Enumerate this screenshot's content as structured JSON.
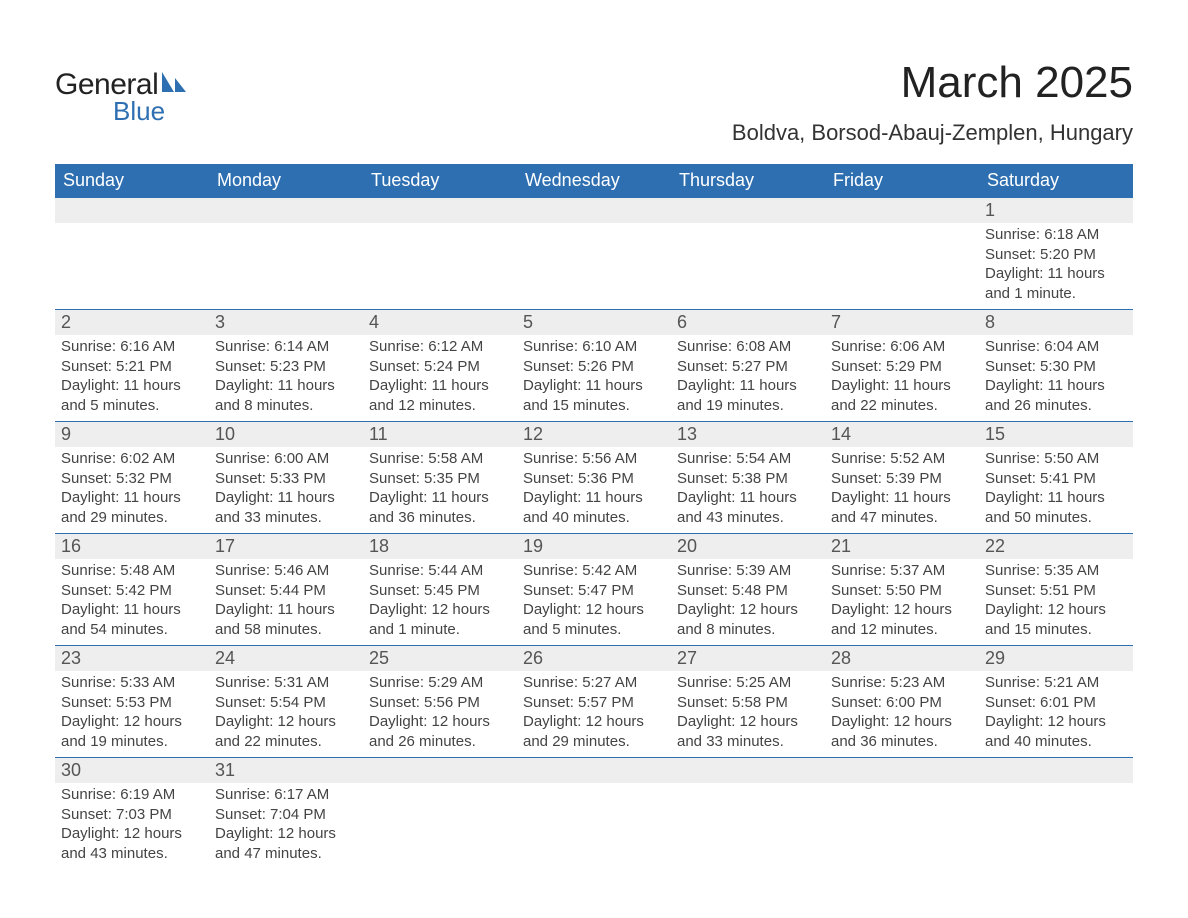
{
  "logo": {
    "word1": "General",
    "word2": "Blue",
    "text_color": "#222222",
    "accent_color": "#2d6fb1"
  },
  "title": "March 2025",
  "location": "Boldva, Borsod-Abauj-Zemplen, Hungary",
  "colors": {
    "header_bg": "#2d6fb1",
    "header_text": "#ffffff",
    "daynum_bg": "#eeeeee",
    "row_border": "#2d6fb1",
    "body_text": "#444444",
    "daynum_text": "#555555",
    "page_bg": "#ffffff"
  },
  "typography": {
    "title_fontsize": 44,
    "location_fontsize": 22,
    "header_fontsize": 18,
    "daynum_fontsize": 18,
    "detail_fontsize": 15
  },
  "day_headers": [
    "Sunday",
    "Monday",
    "Tuesday",
    "Wednesday",
    "Thursday",
    "Friday",
    "Saturday"
  ],
  "weeks": [
    [
      {
        "n": "",
        "sunrise": "",
        "sunset": "",
        "daylight": ""
      },
      {
        "n": "",
        "sunrise": "",
        "sunset": "",
        "daylight": ""
      },
      {
        "n": "",
        "sunrise": "",
        "sunset": "",
        "daylight": ""
      },
      {
        "n": "",
        "sunrise": "",
        "sunset": "",
        "daylight": ""
      },
      {
        "n": "",
        "sunrise": "",
        "sunset": "",
        "daylight": ""
      },
      {
        "n": "",
        "sunrise": "",
        "sunset": "",
        "daylight": ""
      },
      {
        "n": "1",
        "sunrise": "Sunrise: 6:18 AM",
        "sunset": "Sunset: 5:20 PM",
        "daylight": "Daylight: 11 hours and 1 minute."
      }
    ],
    [
      {
        "n": "2",
        "sunrise": "Sunrise: 6:16 AM",
        "sunset": "Sunset: 5:21 PM",
        "daylight": "Daylight: 11 hours and 5 minutes."
      },
      {
        "n": "3",
        "sunrise": "Sunrise: 6:14 AM",
        "sunset": "Sunset: 5:23 PM",
        "daylight": "Daylight: 11 hours and 8 minutes."
      },
      {
        "n": "4",
        "sunrise": "Sunrise: 6:12 AM",
        "sunset": "Sunset: 5:24 PM",
        "daylight": "Daylight: 11 hours and 12 minutes."
      },
      {
        "n": "5",
        "sunrise": "Sunrise: 6:10 AM",
        "sunset": "Sunset: 5:26 PM",
        "daylight": "Daylight: 11 hours and 15 minutes."
      },
      {
        "n": "6",
        "sunrise": "Sunrise: 6:08 AM",
        "sunset": "Sunset: 5:27 PM",
        "daylight": "Daylight: 11 hours and 19 minutes."
      },
      {
        "n": "7",
        "sunrise": "Sunrise: 6:06 AM",
        "sunset": "Sunset: 5:29 PM",
        "daylight": "Daylight: 11 hours and 22 minutes."
      },
      {
        "n": "8",
        "sunrise": "Sunrise: 6:04 AM",
        "sunset": "Sunset: 5:30 PM",
        "daylight": "Daylight: 11 hours and 26 minutes."
      }
    ],
    [
      {
        "n": "9",
        "sunrise": "Sunrise: 6:02 AM",
        "sunset": "Sunset: 5:32 PM",
        "daylight": "Daylight: 11 hours and 29 minutes."
      },
      {
        "n": "10",
        "sunrise": "Sunrise: 6:00 AM",
        "sunset": "Sunset: 5:33 PM",
        "daylight": "Daylight: 11 hours and 33 minutes."
      },
      {
        "n": "11",
        "sunrise": "Sunrise: 5:58 AM",
        "sunset": "Sunset: 5:35 PM",
        "daylight": "Daylight: 11 hours and 36 minutes."
      },
      {
        "n": "12",
        "sunrise": "Sunrise: 5:56 AM",
        "sunset": "Sunset: 5:36 PM",
        "daylight": "Daylight: 11 hours and 40 minutes."
      },
      {
        "n": "13",
        "sunrise": "Sunrise: 5:54 AM",
        "sunset": "Sunset: 5:38 PM",
        "daylight": "Daylight: 11 hours and 43 minutes."
      },
      {
        "n": "14",
        "sunrise": "Sunrise: 5:52 AM",
        "sunset": "Sunset: 5:39 PM",
        "daylight": "Daylight: 11 hours and 47 minutes."
      },
      {
        "n": "15",
        "sunrise": "Sunrise: 5:50 AM",
        "sunset": "Sunset: 5:41 PM",
        "daylight": "Daylight: 11 hours and 50 minutes."
      }
    ],
    [
      {
        "n": "16",
        "sunrise": "Sunrise: 5:48 AM",
        "sunset": "Sunset: 5:42 PM",
        "daylight": "Daylight: 11 hours and 54 minutes."
      },
      {
        "n": "17",
        "sunrise": "Sunrise: 5:46 AM",
        "sunset": "Sunset: 5:44 PM",
        "daylight": "Daylight: 11 hours and 58 minutes."
      },
      {
        "n": "18",
        "sunrise": "Sunrise: 5:44 AM",
        "sunset": "Sunset: 5:45 PM",
        "daylight": "Daylight: 12 hours and 1 minute."
      },
      {
        "n": "19",
        "sunrise": "Sunrise: 5:42 AM",
        "sunset": "Sunset: 5:47 PM",
        "daylight": "Daylight: 12 hours and 5 minutes."
      },
      {
        "n": "20",
        "sunrise": "Sunrise: 5:39 AM",
        "sunset": "Sunset: 5:48 PM",
        "daylight": "Daylight: 12 hours and 8 minutes."
      },
      {
        "n": "21",
        "sunrise": "Sunrise: 5:37 AM",
        "sunset": "Sunset: 5:50 PM",
        "daylight": "Daylight: 12 hours and 12 minutes."
      },
      {
        "n": "22",
        "sunrise": "Sunrise: 5:35 AM",
        "sunset": "Sunset: 5:51 PM",
        "daylight": "Daylight: 12 hours and 15 minutes."
      }
    ],
    [
      {
        "n": "23",
        "sunrise": "Sunrise: 5:33 AM",
        "sunset": "Sunset: 5:53 PM",
        "daylight": "Daylight: 12 hours and 19 minutes."
      },
      {
        "n": "24",
        "sunrise": "Sunrise: 5:31 AM",
        "sunset": "Sunset: 5:54 PM",
        "daylight": "Daylight: 12 hours and 22 minutes."
      },
      {
        "n": "25",
        "sunrise": "Sunrise: 5:29 AM",
        "sunset": "Sunset: 5:56 PM",
        "daylight": "Daylight: 12 hours and 26 minutes."
      },
      {
        "n": "26",
        "sunrise": "Sunrise: 5:27 AM",
        "sunset": "Sunset: 5:57 PM",
        "daylight": "Daylight: 12 hours and 29 minutes."
      },
      {
        "n": "27",
        "sunrise": "Sunrise: 5:25 AM",
        "sunset": "Sunset: 5:58 PM",
        "daylight": "Daylight: 12 hours and 33 minutes."
      },
      {
        "n": "28",
        "sunrise": "Sunrise: 5:23 AM",
        "sunset": "Sunset: 6:00 PM",
        "daylight": "Daylight: 12 hours and 36 minutes."
      },
      {
        "n": "29",
        "sunrise": "Sunrise: 5:21 AM",
        "sunset": "Sunset: 6:01 PM",
        "daylight": "Daylight: 12 hours and 40 minutes."
      }
    ],
    [
      {
        "n": "30",
        "sunrise": "Sunrise: 6:19 AM",
        "sunset": "Sunset: 7:03 PM",
        "daylight": "Daylight: 12 hours and 43 minutes."
      },
      {
        "n": "31",
        "sunrise": "Sunrise: 6:17 AM",
        "sunset": "Sunset: 7:04 PM",
        "daylight": "Daylight: 12 hours and 47 minutes."
      },
      {
        "n": "",
        "sunrise": "",
        "sunset": "",
        "daylight": ""
      },
      {
        "n": "",
        "sunrise": "",
        "sunset": "",
        "daylight": ""
      },
      {
        "n": "",
        "sunrise": "",
        "sunset": "",
        "daylight": ""
      },
      {
        "n": "",
        "sunrise": "",
        "sunset": "",
        "daylight": ""
      },
      {
        "n": "",
        "sunrise": "",
        "sunset": "",
        "daylight": ""
      }
    ]
  ]
}
